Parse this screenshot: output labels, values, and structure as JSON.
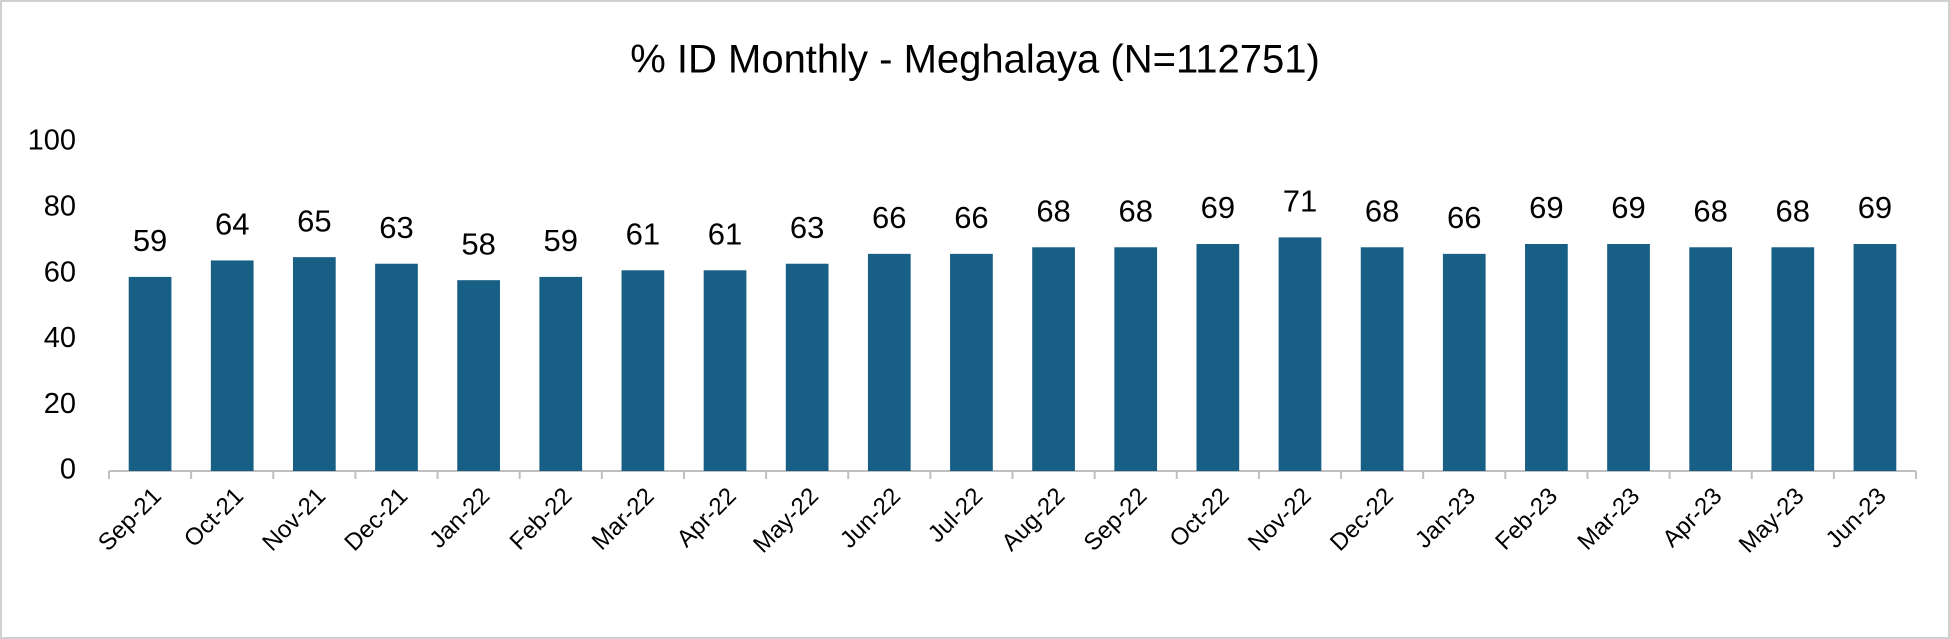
{
  "chart_data": {
    "type": "bar",
    "title": "% ID Monthly - Meghalaya (N=112751)",
    "categories": [
      "Sep-21",
      "Oct-21",
      "Nov-21",
      "Dec-21",
      "Jan-22",
      "Feb-22",
      "Mar-22",
      "Apr-22",
      "May-22",
      "Jun-22",
      "Jul-22",
      "Aug-22",
      "Sep-22",
      "Oct-22",
      "Nov-22",
      "Dec-22",
      "Jan-23",
      "Feb-23",
      "Mar-23",
      "Apr-23",
      "May-23",
      "Jun-23"
    ],
    "values": [
      59,
      64,
      65,
      63,
      58,
      59,
      61,
      61,
      63,
      66,
      66,
      68,
      68,
      69,
      71,
      68,
      66,
      69,
      69,
      68,
      68,
      69
    ],
    "color": "#175f84",
    "ylim": [
      0,
      100
    ],
    "yticks": [
      0,
      20,
      40,
      60,
      80,
      100
    ],
    "grid": false
  }
}
